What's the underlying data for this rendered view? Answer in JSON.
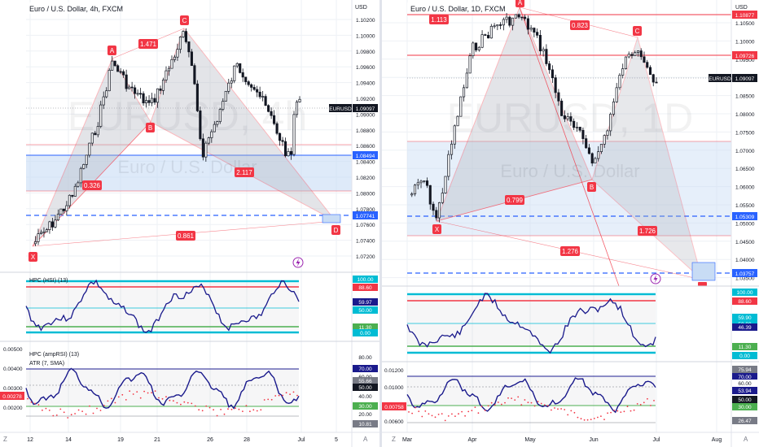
{
  "colors": {
    "grid": "#eef1f5",
    "text": "#131722",
    "muted": "#787b86",
    "red": "#f23645",
    "blue": "#2962ff",
    "navy": "#1a1a8c",
    "cyan": "#00bcd4",
    "green": "#4caf50",
    "harmonic_fill": "#b2b5be",
    "zone_fill": "#c8dcf5",
    "candle": "#131722",
    "down_bg": "#f23645"
  },
  "left": {
    "title": "Euro / U.S. Dollar, 4h, FXCM",
    "watermark_symbol": "EURUSD, 4h",
    "watermark_name": "Euro / U.S. Dollar",
    "currency": "USD",
    "price_ticks": [
      "1.10200",
      "1.10000",
      "1.09800",
      "1.09600",
      "1.09400",
      "1.09200",
      "1.09000",
      "1.08800",
      "1.08600",
      "1.08400",
      "1.08200",
      "1.08000",
      "1.07800",
      "1.07600",
      "1.07400",
      "1.07200"
    ],
    "symbol_tag": "EURUSD",
    "price_tag": "1.09097",
    "level_tag_1": "1.08494",
    "level_tag_2": "1.07741",
    "point_labels": [
      "X",
      "A",
      "B",
      "C",
      "D"
    ],
    "ratio_labels": [
      "1.471",
      "0.326",
      "2.117",
      "0.861"
    ],
    "date_ticks": [
      "12",
      "14",
      "19",
      "21",
      "26",
      "28",
      "Jul",
      "5"
    ],
    "scroll_letter": "A",
    "osc1_title": "HPC (HSI) (13)",
    "osc1_tags": [
      "100.00",
      "88.60",
      "59.97",
      "50.00",
      "11.30",
      "0.00"
    ],
    "osc2_title": "HPC (ampRSI) (13)",
    "osc2_sub": "ATR (7, SMA)",
    "osc2_ticks": [
      "0.00500",
      "0.00400",
      "0.00300",
      "0.00200"
    ],
    "osc2_tags": [
      "80.00",
      "70.00",
      "60.00",
      "55.66",
      "50.00",
      "40.00",
      "30.00",
      "20.00",
      "10.81"
    ],
    "atr_tag": "0.00278"
  },
  "right": {
    "title": "Euro / U.S. Dollar, 1D, FXCM",
    "watermark_symbol": "EURUSD, 1D",
    "watermark_name": "Euro / U.S. Dollar",
    "currency": "USD",
    "price_ticks": [
      "1.10500",
      "1.10000",
      "1.09500",
      "1.09000",
      "1.08500",
      "1.08000",
      "1.07500",
      "1.07000",
      "1.06500",
      "1.06000",
      "1.05500",
      "1.05000",
      "1.04500",
      "1.04000",
      "1.03500"
    ],
    "level_tag_top": "1.10877",
    "level_tag_2": "1.09726",
    "symbol_tag": "EURUSD",
    "price_tag": "1.09097",
    "level_tag_3": "1.05309",
    "level_tag_4": "1.03757",
    "point_labels": [
      "X",
      "A",
      "B",
      "C"
    ],
    "ratio_labels": [
      "1.113",
      "0.823",
      "0.799",
      "1.726",
      "1.276"
    ],
    "date_ticks": [
      "Mar",
      "Apr",
      "May",
      "Jun",
      "Jul",
      "Aug"
    ],
    "scroll_letter": "A",
    "osc1_tags": [
      "100.00",
      "88.60",
      "59.90",
      "50.00",
      "46.39",
      "11.30",
      "0.00"
    ],
    "osc2_ticks": [
      "0.01200",
      "0.01000",
      "0.00800",
      "0.00600"
    ],
    "osc2_tags": [
      "75.94",
      "70.00",
      "60.00",
      "53.94",
      "50.00",
      "30.00",
      "26.47"
    ],
    "atr_tag": "0.00758"
  },
  "left_gutter_letter": "Z",
  "right_gutter_letter": "Z"
}
